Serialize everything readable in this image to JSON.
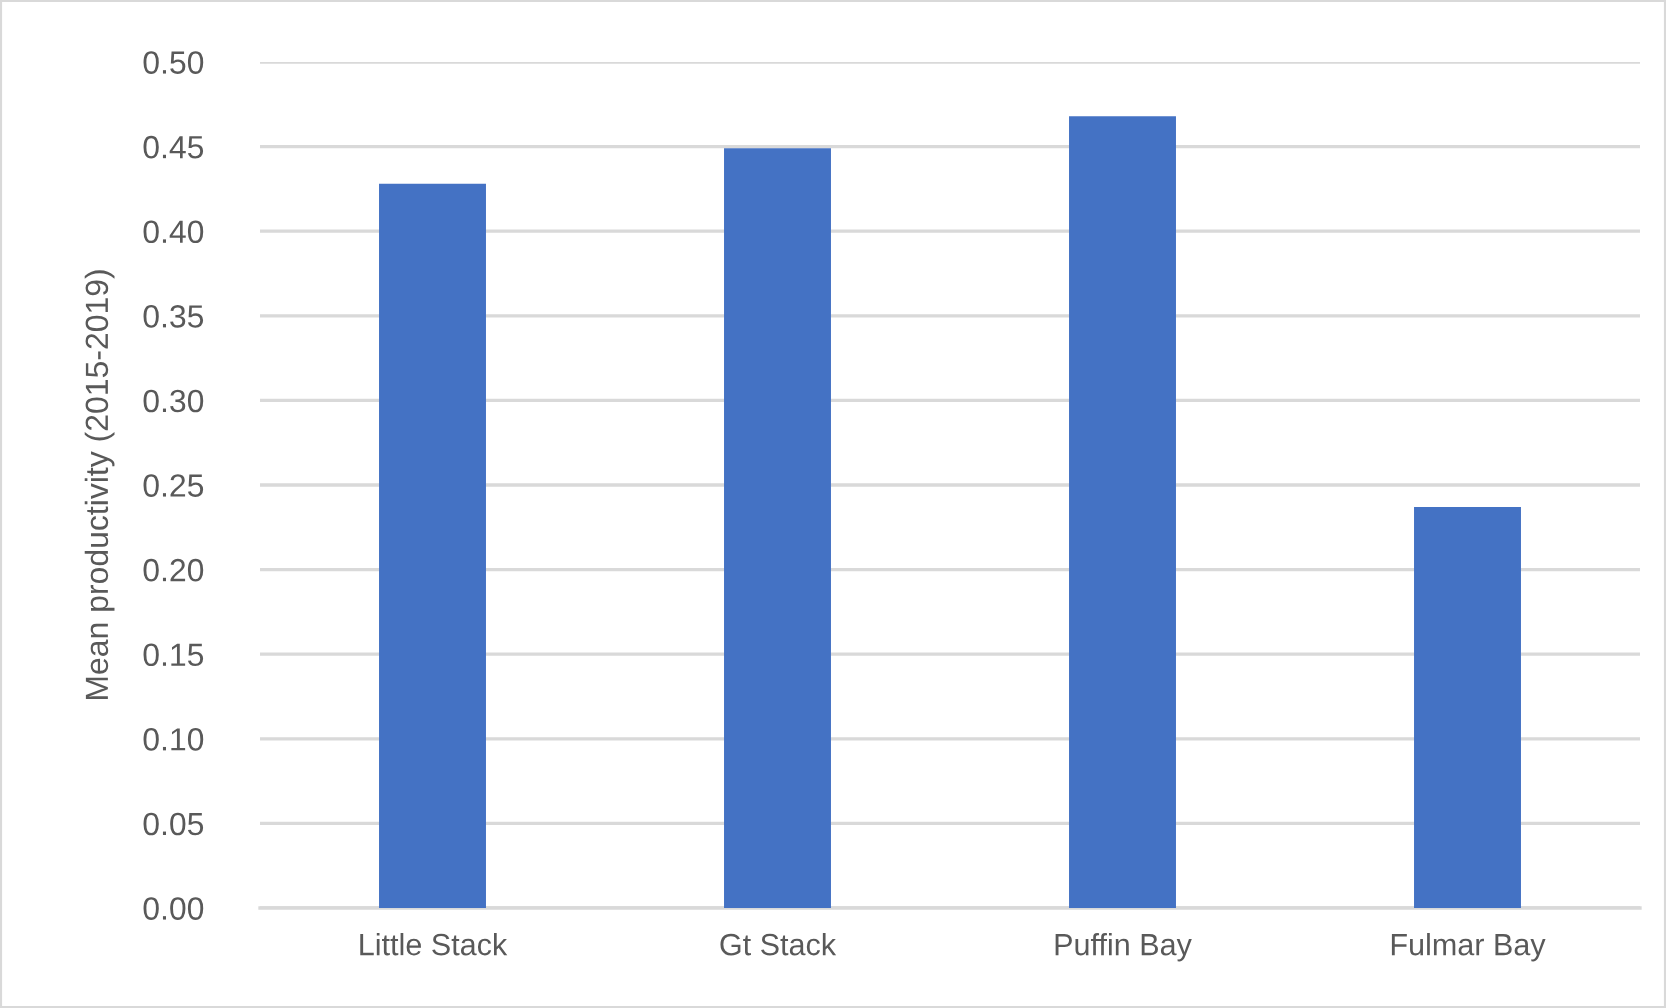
{
  "chart_data": {
    "type": "bar",
    "ylabel": "Mean productivity (2015-2019)",
    "categories": [
      "Little Stack",
      "Gt Stack",
      "Puffin Bay",
      "Fulmar Bay"
    ],
    "values": [
      0.428,
      0.449,
      0.468,
      0.237
    ],
    "color": "#4472c4",
    "ylim": [
      0,
      0.5
    ],
    "yticks": [
      {
        "value": 0,
        "label": "0.00"
      },
      {
        "value": 0.05,
        "label": "0.05"
      },
      {
        "value": 0.1,
        "label": "0.10"
      },
      {
        "value": 0.15,
        "label": "0.15"
      },
      {
        "value": 0.2,
        "label": "0.20"
      },
      {
        "value": 0.25,
        "label": "0.25"
      },
      {
        "value": 0.3,
        "label": "0.30"
      },
      {
        "value": 0.35,
        "label": "0.35"
      },
      {
        "value": 0.4,
        "label": "0.40"
      },
      {
        "value": 0.45,
        "label": "0.45"
      },
      {
        "value": 0.5,
        "label": "0.50"
      }
    ],
    "grid": "y"
  }
}
